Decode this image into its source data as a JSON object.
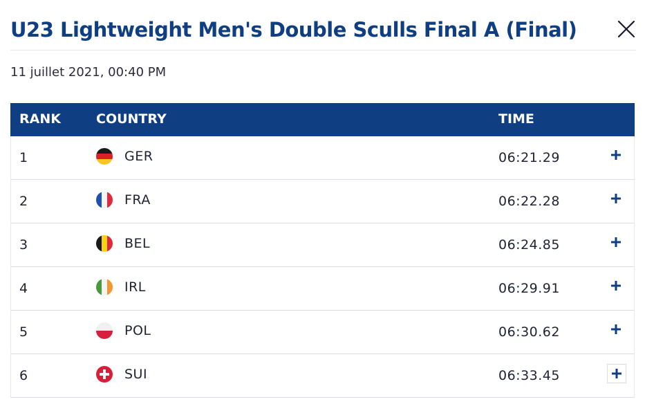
{
  "header": {
    "title": "U23 Lightweight Men's Double Sculls Final A (Final)",
    "close_icon": "close-icon"
  },
  "event": {
    "date": "11 juillet 2021, 00:40 PM"
  },
  "table": {
    "columns": {
      "rank": "RANK",
      "country": "COUNTRY",
      "time": "TIME"
    },
    "rows": [
      {
        "rank": "1",
        "country": "GER",
        "time": "06:21.29",
        "flag": "germany-flag-icon"
      },
      {
        "rank": "2",
        "country": "FRA",
        "time": "06:22.28",
        "flag": "france-flag-icon"
      },
      {
        "rank": "3",
        "country": "BEL",
        "time": "06:24.85",
        "flag": "belgium-flag-icon"
      },
      {
        "rank": "4",
        "country": "IRL",
        "time": "06:29.91",
        "flag": "ireland-flag-icon"
      },
      {
        "rank": "5",
        "country": "POL",
        "time": "06:30.62",
        "flag": "poland-flag-icon"
      },
      {
        "rank": "6",
        "country": "SUI",
        "time": "06:33.45",
        "flag": "switzerland-flag-icon"
      }
    ],
    "expand_icon": "plus-icon"
  },
  "colors": {
    "brand": "#0f3f82",
    "header_bg": "#0f3f82",
    "row_border": "#d9dde3"
  }
}
